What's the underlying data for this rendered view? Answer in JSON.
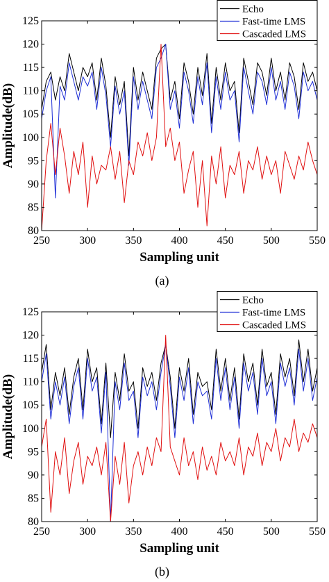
{
  "chart_data": [
    {
      "type": "line",
      "caption": "(a)",
      "xlabel": "Sampling unit",
      "ylabel": "Amplitude(dB)",
      "xlim": [
        250,
        550
      ],
      "ylim": [
        80,
        125
      ],
      "xticks": [
        250,
        300,
        350,
        400,
        450,
        500,
        550
      ],
      "yticks": [
        80,
        85,
        90,
        95,
        100,
        105,
        110,
        115,
        120,
        125
      ],
      "grid": false,
      "legend_position": "top-right",
      "colors": {
        "Echo": "#000000",
        "Fast-time LMS": "#1f2fd6",
        "Cascaded LMS": "#e01010"
      },
      "series": [
        {
          "name": "Echo",
          "x": [
            250,
            255,
            260,
            265,
            270,
            275,
            280,
            285,
            290,
            295,
            300,
            305,
            310,
            315,
            320,
            325,
            330,
            335,
            340,
            345,
            350,
            355,
            360,
            365,
            370,
            375,
            380,
            385,
            390,
            395,
            400,
            405,
            410,
            415,
            420,
            425,
            430,
            435,
            440,
            445,
            450,
            455,
            460,
            465,
            470,
            475,
            480,
            485,
            490,
            495,
            500,
            505,
            510,
            515,
            520,
            525,
            530,
            535,
            540,
            545,
            550
          ],
          "y": [
            106,
            112,
            114,
            108,
            113,
            110,
            118,
            114,
            110,
            115,
            113,
            116,
            108,
            117,
            111,
            100,
            113,
            107,
            112,
            96,
            115,
            108,
            114,
            110,
            106,
            117,
            119,
            120,
            108,
            112,
            104,
            116,
            112,
            105,
            115,
            109,
            118,
            103,
            115,
            108,
            116,
            110,
            112,
            101,
            117,
            112,
            107,
            116,
            114,
            109,
            117,
            110,
            114,
            108,
            116,
            113,
            106,
            116,
            112,
            114,
            110
          ]
        },
        {
          "name": "Fast-time LMS",
          "x": [
            250,
            255,
            260,
            265,
            270,
            275,
            280,
            285,
            290,
            295,
            300,
            305,
            310,
            315,
            320,
            325,
            330,
            335,
            340,
            345,
            350,
            355,
            360,
            365,
            370,
            375,
            380,
            385,
            390,
            395,
            400,
            405,
            410,
            415,
            420,
            425,
            430,
            435,
            440,
            445,
            450,
            455,
            460,
            465,
            470,
            475,
            480,
            485,
            490,
            495,
            500,
            505,
            510,
            515,
            520,
            525,
            530,
            535,
            540,
            545,
            550
          ],
          "y": [
            104,
            110,
            113,
            87,
            111,
            108,
            116,
            112,
            108,
            113,
            111,
            114,
            106,
            115,
            109,
            98,
            111,
            105,
            110,
            94,
            113,
            106,
            112,
            108,
            104,
            115,
            117,
            120,
            106,
            110,
            102,
            114,
            110,
            103,
            113,
            107,
            116,
            101,
            113,
            106,
            114,
            108,
            110,
            99,
            115,
            110,
            105,
            114,
            112,
            107,
            115,
            108,
            112,
            106,
            114,
            111,
            104,
            114,
            110,
            112,
            108
          ]
        },
        {
          "name": "Cascaded LMS",
          "x": [
            250,
            255,
            260,
            265,
            270,
            275,
            280,
            285,
            290,
            295,
            300,
            305,
            310,
            315,
            320,
            325,
            330,
            335,
            340,
            345,
            350,
            355,
            360,
            365,
            370,
            375,
            380,
            385,
            390,
            395,
            400,
            405,
            410,
            415,
            420,
            425,
            430,
            435,
            440,
            445,
            450,
            455,
            460,
            465,
            470,
            475,
            480,
            485,
            490,
            495,
            500,
            505,
            510,
            515,
            520,
            525,
            530,
            535,
            540,
            545,
            550
          ],
          "y": [
            80,
            95,
            103,
            92,
            102,
            96,
            88,
            97,
            92,
            99,
            85,
            96,
            90,
            94,
            93,
            98,
            91,
            97,
            86,
            95,
            92,
            99,
            96,
            101,
            95,
            100,
            120,
            98,
            102,
            95,
            99,
            88,
            93,
            97,
            85,
            95,
            81,
            96,
            90,
            98,
            87,
            94,
            92,
            97,
            88,
            95,
            93,
            98,
            91,
            96,
            92,
            95,
            88,
            97,
            94,
            91,
            96,
            93,
            99,
            95,
            92
          ]
        }
      ]
    },
    {
      "type": "line",
      "caption": "(b)",
      "xlabel": "Sampling unit",
      "ylabel": "Amplitude(dB)",
      "xlim": [
        250,
        550
      ],
      "ylim": [
        80,
        125
      ],
      "xticks": [
        250,
        300,
        350,
        400,
        450,
        500,
        550
      ],
      "yticks": [
        80,
        85,
        90,
        95,
        100,
        105,
        110,
        115,
        120,
        125
      ],
      "grid": false,
      "legend_position": "top-right",
      "colors": {
        "Echo": "#000000",
        "Fast-time LMS": "#1f2fd6",
        "Cascaded LMS": "#e01010"
      },
      "series": [
        {
          "name": "Echo",
          "x": [
            250,
            255,
            260,
            265,
            270,
            275,
            280,
            285,
            290,
            295,
            300,
            305,
            310,
            315,
            320,
            325,
            330,
            335,
            340,
            345,
            350,
            355,
            360,
            365,
            370,
            375,
            380,
            385,
            390,
            395,
            400,
            405,
            410,
            415,
            420,
            425,
            430,
            435,
            440,
            445,
            450,
            455,
            460,
            465,
            470,
            475,
            480,
            485,
            490,
            495,
            500,
            505,
            510,
            515,
            520,
            525,
            530,
            535,
            540,
            545,
            550
          ],
          "y": [
            112,
            118,
            104,
            112,
            107,
            113,
            103,
            111,
            115,
            104,
            117,
            110,
            113,
            101,
            114,
            98,
            112,
            106,
            116,
            108,
            110,
            100,
            113,
            109,
            112,
            106,
            114,
            118,
            111,
            100,
            113,
            108,
            115,
            103,
            112,
            109,
            110,
            104,
            117,
            108,
            115,
            106,
            113,
            102,
            116,
            110,
            114,
            105,
            117,
            109,
            112,
            103,
            116,
            111,
            115,
            107,
            119,
            110,
            117,
            108,
            113
          ]
        },
        {
          "name": "Fast-time LMS",
          "x": [
            250,
            255,
            260,
            265,
            270,
            275,
            280,
            285,
            290,
            295,
            300,
            305,
            310,
            315,
            320,
            325,
            330,
            335,
            340,
            345,
            350,
            355,
            360,
            365,
            370,
            375,
            380,
            385,
            390,
            395,
            400,
            405,
            410,
            415,
            420,
            425,
            430,
            435,
            440,
            445,
            450,
            455,
            460,
            465,
            470,
            475,
            480,
            485,
            490,
            495,
            500,
            505,
            510,
            515,
            520,
            525,
            530,
            535,
            540,
            545,
            550
          ],
          "y": [
            110,
            116,
            102,
            110,
            105,
            111,
            101,
            109,
            113,
            102,
            115,
            108,
            111,
            99,
            112,
            80,
            110,
            104,
            114,
            106,
            108,
            98,
            111,
            107,
            110,
            104,
            112,
            118,
            109,
            98,
            111,
            106,
            113,
            101,
            110,
            107,
            108,
            102,
            115,
            106,
            113,
            104,
            111,
            100,
            114,
            108,
            112,
            103,
            115,
            107,
            110,
            101,
            114,
            109,
            113,
            105,
            117,
            108,
            115,
            106,
            111
          ]
        },
        {
          "name": "Cascaded LMS",
          "x": [
            250,
            255,
            260,
            265,
            270,
            275,
            280,
            285,
            290,
            295,
            300,
            305,
            310,
            315,
            320,
            325,
            330,
            335,
            340,
            345,
            350,
            355,
            360,
            365,
            370,
            375,
            380,
            385,
            390,
            395,
            400,
            405,
            410,
            415,
            420,
            425,
            430,
            435,
            440,
            445,
            450,
            455,
            460,
            465,
            470,
            475,
            480,
            485,
            490,
            495,
            500,
            505,
            510,
            515,
            520,
            525,
            530,
            535,
            540,
            545,
            550
          ],
          "y": [
            96,
            102,
            82,
            95,
            90,
            98,
            86,
            93,
            97,
            88,
            94,
            92,
            96,
            90,
            97,
            80,
            94,
            88,
            97,
            84,
            92,
            95,
            90,
            96,
            92,
            98,
            95,
            120,
            96,
            93,
            90,
            98,
            92,
            95,
            89,
            96,
            91,
            94,
            90,
            97,
            93,
            95,
            92,
            98,
            90,
            96,
            94,
            99,
            92,
            97,
            95,
            100,
            93,
            98,
            96,
            102,
            95,
            99,
            97,
            101,
            98
          ]
        }
      ]
    }
  ]
}
